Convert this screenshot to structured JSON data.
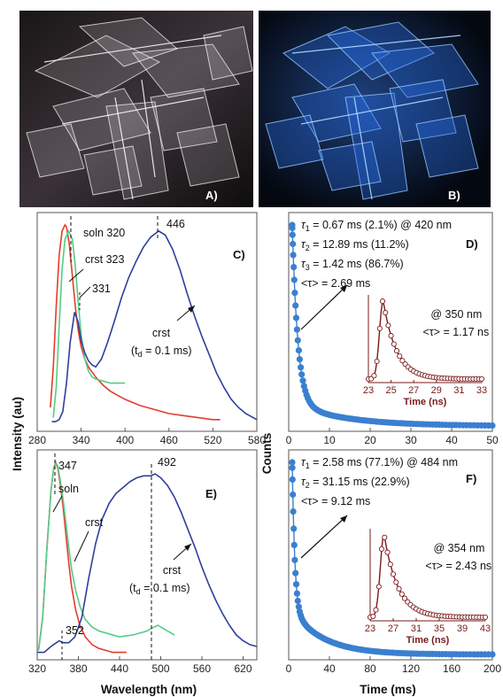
{
  "photos": [
    {
      "label": "A)",
      "description_color": "#f0ecef"
    },
    {
      "label": "B)",
      "description_color": "#1e60d8"
    }
  ],
  "axis_titles": {
    "left_y": "Intensity (au)",
    "left_x": "Wavelength (nm)",
    "right_y": "Counts",
    "right_x": "Time (ms)"
  },
  "colors": {
    "red": "#e43d2a",
    "green": "#55cc88",
    "blue": "#2e3f9e",
    "decay": "#3b7fd0",
    "inset": "#7a1a1a"
  },
  "chart_data": [
    {
      "type": "line",
      "panel": "C)",
      "xlim": [
        280,
        580
      ],
      "xticks": [
        280,
        340,
        400,
        460,
        520,
        580
      ],
      "series": [
        {
          "name": "soln",
          "color": "#e43d2a",
          "x": [
            298,
            302,
            306,
            310,
            314,
            318,
            320,
            324,
            328,
            332,
            336,
            340,
            345,
            350,
            360,
            370,
            380,
            390,
            400,
            420,
            440,
            460,
            480,
            500,
            520,
            530
          ],
          "y": [
            0.1,
            0.3,
            0.6,
            0.85,
            0.97,
            1.0,
            0.99,
            0.9,
            0.75,
            0.6,
            0.48,
            0.4,
            0.34,
            0.3,
            0.25,
            0.21,
            0.18,
            0.16,
            0.14,
            0.11,
            0.09,
            0.07,
            0.06,
            0.05,
            0.04,
            0.04
          ]
        },
        {
          "name": "crst",
          "color": "#55cc88",
          "x": [
            302,
            306,
            310,
            314,
            318,
            323,
            328,
            332,
            336,
            340,
            345,
            350,
            355,
            360,
            370,
            380,
            390,
            400
          ],
          "y": [
            0.05,
            0.2,
            0.5,
            0.78,
            0.93,
            0.97,
            0.93,
            0.8,
            0.62,
            0.46,
            0.34,
            0.28,
            0.25,
            0.24,
            0.23,
            0.22,
            0.22,
            0.22
          ]
        },
        {
          "name": "crst (td = 0.1 ms)",
          "color": "#2e3f9e",
          "x": [
            300,
            305,
            310,
            315,
            320,
            325,
            331,
            336,
            340,
            345,
            350,
            355,
            360,
            368,
            376,
            385,
            395,
            405,
            415,
            425,
            435,
            446,
            455,
            465,
            475,
            485,
            495,
            505,
            515,
            525,
            535,
            545,
            555,
            565,
            575,
            580
          ],
          "y": [
            0.03,
            0.03,
            0.04,
            0.08,
            0.22,
            0.42,
            0.57,
            0.52,
            0.43,
            0.37,
            0.33,
            0.31,
            0.3,
            0.34,
            0.42,
            0.52,
            0.64,
            0.74,
            0.82,
            0.89,
            0.94,
            0.97,
            0.95,
            0.88,
            0.78,
            0.66,
            0.55,
            0.45,
            0.36,
            0.27,
            0.2,
            0.14,
            0.1,
            0.07,
            0.05,
            0.04
          ]
        }
      ],
      "annotations": [
        "soln 320",
        "crst 323",
        "331",
        "446",
        "crst",
        "(t",
        "d",
        " = 0.1 ms)"
      ]
    },
    {
      "type": "scatter",
      "panel": "D)",
      "xlim": [
        0,
        50
      ],
      "xticks": [
        0,
        10,
        20,
        30,
        40,
        50
      ],
      "lines": [
        {
          "pre": "τ",
          "sub": "1",
          "rest": " =   0.67 ms (2.1%) @ 420 nm"
        },
        {
          "pre": "τ",
          "sub": "2",
          "rest": " = 12.89 ms (11.2%)"
        },
        {
          "pre": "τ",
          "sub": "3",
          "rest": " =   1.42 ms (86.7%)"
        },
        {
          "pre": "<τ> = 2.69 ms",
          "sub": "",
          "rest": ""
        }
      ],
      "decay": {
        "tau1": 0.67,
        "tau2": 12.89,
        "tau3": 1.42,
        "w1": 0.021,
        "w2": 0.112,
        "w3": 0.867,
        "t_max": 50
      },
      "inset": {
        "xlim": [
          23,
          33
        ],
        "xticks": [
          23,
          25,
          27,
          29,
          31,
          33
        ],
        "xlabel": "Time (ns)",
        "annotation": "@ 350 nm",
        "tau_line": "<τ> = 1.17 ns",
        "peak": 24.3,
        "rise": 0.45,
        "tau": 1.17
      }
    },
    {
      "type": "line",
      "panel": "E)",
      "xlim": [
        320,
        640
      ],
      "xticks": [
        320,
        380,
        440,
        500,
        560,
        620
      ],
      "series": [
        {
          "name": "soln",
          "color": "#e43d2a",
          "x": [
            322,
            328,
            334,
            340,
            344,
            347,
            350,
            354,
            358,
            362,
            366,
            370,
            376,
            382,
            390,
            400,
            410,
            420,
            430,
            440,
            450
          ],
          "y": [
            0.03,
            0.2,
            0.55,
            0.85,
            0.97,
            1.0,
            0.97,
            0.88,
            0.76,
            0.62,
            0.48,
            0.36,
            0.24,
            0.16,
            0.1,
            0.06,
            0.04,
            0.03,
            0.02,
            0.02,
            0.02
          ]
        },
        {
          "name": "crst",
          "color": "#55cc88",
          "x": [
            322,
            328,
            334,
            340,
            344,
            347,
            350,
            354,
            358,
            362,
            366,
            370,
            376,
            382,
            390,
            400,
            410,
            420,
            440,
            460,
            480,
            490,
            496,
            505,
            515,
            520
          ],
          "y": [
            0.03,
            0.2,
            0.55,
            0.85,
            0.97,
            1.0,
            0.98,
            0.9,
            0.8,
            0.68,
            0.56,
            0.45,
            0.34,
            0.26,
            0.19,
            0.15,
            0.13,
            0.12,
            0.1,
            0.11,
            0.13,
            0.15,
            0.16,
            0.14,
            0.12,
            0.11
          ]
        },
        {
          "name": "crst (td = 0.1 ms)",
          "color": "#2e3f9e",
          "x": [
            320,
            330,
            340,
            348,
            352,
            358,
            366,
            375,
            385,
            395,
            405,
            415,
            425,
            435,
            445,
            455,
            465,
            475,
            485,
            492,
            500,
            510,
            520,
            530,
            540,
            550,
            560,
            570,
            580,
            590,
            600,
            610,
            620,
            630,
            640
          ],
          "y": [
            0.02,
            0.02,
            0.05,
            0.07,
            0.08,
            0.07,
            0.07,
            0.1,
            0.2,
            0.4,
            0.58,
            0.71,
            0.79,
            0.84,
            0.87,
            0.9,
            0.92,
            0.93,
            0.93,
            0.94,
            0.92,
            0.88,
            0.82,
            0.74,
            0.65,
            0.56,
            0.46,
            0.37,
            0.29,
            0.22,
            0.16,
            0.11,
            0.08,
            0.06,
            0.05
          ]
        }
      ],
      "annotations": [
        "347",
        "soln",
        "crst",
        "352",
        "492",
        "crst",
        "(t",
        "d",
        " = 0.1 ms)"
      ]
    },
    {
      "type": "scatter",
      "panel": "F)",
      "xlim": [
        0,
        200
      ],
      "xticks": [
        0,
        40,
        80,
        120,
        160,
        200
      ],
      "lines": [
        {
          "pre": "τ",
          "sub": "1",
          "rest": " =   2.58 ms (77.1%) @ 484 nm"
        },
        {
          "pre": "τ",
          "sub": "2",
          "rest": " = 31.15 ms (22.9%)"
        },
        {
          "pre": "<τ> = 9.12 ms",
          "sub": "",
          "rest": ""
        }
      ],
      "decay": {
        "tau1": 2.58,
        "tau2": 31.15,
        "tau3": 0,
        "w1": 0.771,
        "w2": 0.229,
        "w3": 0,
        "t_max": 200
      },
      "inset": {
        "xlim": [
          23,
          43
        ],
        "xticks": [
          23,
          27,
          31,
          35,
          39,
          43
        ],
        "xlabel": "Time (ns)",
        "annotation": "@ 354 nm",
        "tau_line": "<τ> = 2.43 ns",
        "peak": 25.4,
        "rise": 0.9,
        "tau": 2.43
      }
    }
  ]
}
